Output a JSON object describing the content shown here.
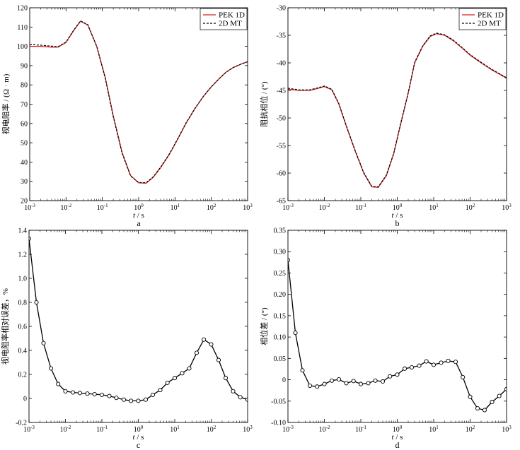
{
  "chart_data": [
    {
      "id": "a",
      "type": "line",
      "panel_label": "a",
      "xlabel_italic": "t",
      "xlabel_rest": " / s",
      "ylabel": "视电阻率 / (Ω · m)",
      "xscale": "log",
      "xlim": [
        0.001,
        1000
      ],
      "ylim": [
        20,
        120
      ],
      "yticks": [
        20,
        30,
        40,
        50,
        60,
        70,
        80,
        90,
        100,
        110,
        120
      ],
      "xtick_exponents": [
        -3,
        -2,
        -1,
        0,
        1,
        2,
        3
      ],
      "legend_position": "top-right",
      "series": [
        {
          "name": "PEK 1D",
          "color": "#d42020",
          "dash": "solid",
          "x": [
            0.001,
            0.002,
            0.004,
            0.006,
            0.01,
            0.016,
            0.025,
            0.04,
            0.07,
            0.12,
            0.2,
            0.35,
            0.6,
            1,
            1.6,
            2.5,
            4,
            7,
            12,
            20,
            35,
            60,
            100,
            160,
            250,
            400,
            700,
            1000
          ],
          "y": [
            100,
            100,
            99.6,
            99.6,
            102,
            108,
            113,
            111,
            100,
            84,
            64,
            45,
            33,
            29.2,
            29,
            32,
            37,
            44,
            52,
            60,
            67.5,
            74,
            79,
            83,
            86.5,
            89,
            91,
            92
          ]
        },
        {
          "name": "2D MT",
          "color": "#000000",
          "dash": "dashed",
          "x": [
            0.001,
            0.002,
            0.004,
            0.006,
            0.01,
            0.016,
            0.025,
            0.04,
            0.07,
            0.12,
            0.2,
            0.35,
            0.6,
            1,
            1.6,
            2.5,
            4,
            7,
            12,
            20,
            35,
            60,
            100,
            160,
            250,
            400,
            700,
            1000
          ],
          "y": [
            101,
            100.6,
            100.1,
            99.8,
            102.2,
            108.2,
            113.2,
            111.2,
            100,
            83.5,
            63.5,
            44.5,
            32.8,
            29.4,
            29.3,
            32.3,
            37.3,
            44.2,
            52.2,
            60.2,
            67.7,
            74,
            79,
            83,
            86.5,
            89,
            91,
            92
          ]
        }
      ]
    },
    {
      "id": "b",
      "type": "line",
      "panel_label": "b",
      "xlabel_italic": "t",
      "xlabel_rest": " / s",
      "ylabel": "阻抗相位 / (°)",
      "xscale": "log",
      "xlim": [
        0.001,
        1000
      ],
      "ylim": [
        -65,
        -30
      ],
      "yticks": [
        -65,
        -60,
        -55,
        -50,
        -45,
        -40,
        -35,
        -30
      ],
      "xtick_exponents": [
        -3,
        -2,
        -1,
        0,
        1,
        2,
        3
      ],
      "legend_position": "top-right",
      "series": [
        {
          "name": "PEK 1D",
          "color": "#d42020",
          "dash": "solid",
          "x": [
            0.001,
            0.002,
            0.004,
            0.006,
            0.01,
            0.016,
            0.025,
            0.04,
            0.07,
            0.12,
            0.2,
            0.3,
            0.5,
            0.8,
            1.2,
            2,
            3,
            5,
            8,
            12,
            20,
            35,
            60,
            100,
            200,
            400,
            700,
            1000
          ],
          "y": [
            -44.8,
            -45,
            -45,
            -44.7,
            -44.3,
            -44.9,
            -47.5,
            -51.5,
            -56,
            -60,
            -62.5,
            -62.6,
            -60.5,
            -56.5,
            -51.5,
            -45.5,
            -40,
            -37,
            -35.2,
            -34.7,
            -35,
            -36,
            -37.3,
            -38.6,
            -40,
            -41.3,
            -42.2,
            -42.8
          ]
        },
        {
          "name": "2D MT",
          "color": "#000000",
          "dash": "dashed",
          "x": [
            0.001,
            0.002,
            0.004,
            0.006,
            0.01,
            0.016,
            0.025,
            0.04,
            0.07,
            0.12,
            0.2,
            0.3,
            0.5,
            0.8,
            1.2,
            2,
            3,
            5,
            8,
            12,
            20,
            35,
            60,
            100,
            200,
            400,
            700,
            1000
          ],
          "y": [
            -44.6,
            -44.9,
            -44.9,
            -44.6,
            -44.2,
            -44.8,
            -47.4,
            -51.4,
            -55.9,
            -59.9,
            -62.4,
            -62.5,
            -60.4,
            -56.4,
            -51.4,
            -45.4,
            -39.9,
            -36.9,
            -35.1,
            -34.6,
            -34.9,
            -35.9,
            -37.2,
            -38.5,
            -39.9,
            -41.2,
            -42.1,
            -42.7
          ]
        }
      ]
    },
    {
      "id": "c",
      "type": "line",
      "panel_label": "c",
      "xlabel_italic": "t",
      "xlabel_rest": " / s",
      "ylabel": "视电阻率相对误差，%",
      "xscale": "log",
      "xlim": [
        0.001,
        1000
      ],
      "ylim": [
        -0.2,
        1.4
      ],
      "yticks": [
        -0.2,
        0,
        0.2,
        0.4,
        0.6,
        0.8,
        1.0,
        1.2,
        1.4
      ],
      "ytick_labels": [
        "-0.2",
        "0",
        "0.2",
        "0.4",
        "0.6",
        "0.8",
        "1.0",
        "1.2",
        "1.4"
      ],
      "xtick_exponents": [
        -3,
        -2,
        -1,
        0,
        1,
        2,
        3
      ],
      "marker": "circle",
      "series": [
        {
          "color": "#000000",
          "dash": "solid",
          "x": [
            0.001,
            0.0016,
            0.0025,
            0.004,
            0.0063,
            0.01,
            0.016,
            0.025,
            0.04,
            0.063,
            0.1,
            0.16,
            0.25,
            0.4,
            0.63,
            1,
            1.6,
            2.5,
            4,
            6.3,
            10,
            16,
            25,
            40,
            63,
            100,
            160,
            250,
            400,
            630,
            1000
          ],
          "y": [
            1.33,
            0.8,
            0.46,
            0.25,
            0.12,
            0.06,
            0.05,
            0.045,
            0.04,
            0.035,
            0.03,
            0.02,
            0.005,
            -0.01,
            -0.02,
            -0.02,
            -0.01,
            0.03,
            0.07,
            0.13,
            0.17,
            0.21,
            0.25,
            0.38,
            0.49,
            0.45,
            0.32,
            0.17,
            0.06,
            0.01,
            -0.01
          ]
        }
      ]
    },
    {
      "id": "d",
      "type": "line",
      "panel_label": "d",
      "xlabel_italic": "t",
      "xlabel_rest": " / s",
      "ylabel": "相位差 / (°)",
      "xscale": "log",
      "xlim": [
        0.001,
        1000
      ],
      "ylim": [
        -0.1,
        0.35
      ],
      "yticks": [
        -0.1,
        -0.05,
        0,
        0.05,
        0.1,
        0.15,
        0.2,
        0.25,
        0.3,
        0.35
      ],
      "ytick_labels": [
        "-0.10",
        "-0.05",
        "0",
        "0.05",
        "0.10",
        "0.15",
        "0.20",
        "0.25",
        "0.30",
        "0.35"
      ],
      "xtick_exponents": [
        -3,
        -2,
        -1,
        0,
        1,
        2,
        3
      ],
      "marker": "circle",
      "series": [
        {
          "color": "#000000",
          "dash": "solid",
          "x": [
            0.001,
            0.0016,
            0.0025,
            0.004,
            0.0063,
            0.01,
            0.016,
            0.025,
            0.04,
            0.063,
            0.1,
            0.16,
            0.25,
            0.4,
            0.63,
            1,
            1.6,
            2.5,
            4,
            6.3,
            10,
            16,
            25,
            40,
            63,
            100,
            160,
            250,
            400,
            630,
            1000
          ],
          "y": [
            0.28,
            0.11,
            0.022,
            -0.014,
            -0.016,
            -0.01,
            -0.002,
            0.001,
            -0.008,
            -0.003,
            -0.01,
            -0.008,
            -0.002,
            -0.004,
            0.008,
            0.012,
            0.026,
            0.029,
            0.033,
            0.043,
            0.035,
            0.04,
            0.044,
            0.042,
            0.006,
            -0.04,
            -0.067,
            -0.071,
            -0.052,
            -0.038,
            -0.022
          ]
        }
      ]
    }
  ]
}
